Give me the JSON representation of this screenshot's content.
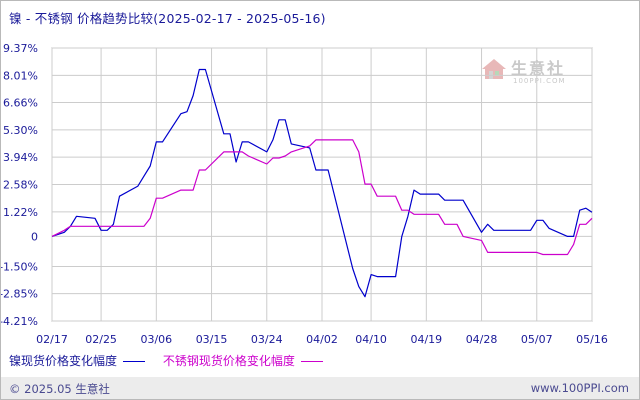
{
  "title": "镍 - 不锈钢 价格趋势比较(2025-02-17 - 2025-05-16)",
  "footer": {
    "left": "© 2025.05 生意社",
    "right": "www.100PPI.com"
  },
  "watermark": {
    "name": "生意社",
    "url": "100PPI.COM",
    "icon": "house-logo-icon"
  },
  "colors": {
    "nickel": "#0000cc",
    "stainless": "#cc00cc",
    "grid": "#cccccc",
    "axis_text": "#1a1a99"
  },
  "chart_data": {
    "type": "line",
    "title": "镍 - 不锈钢 价格趋势比较(2025-02-17 - 2025-05-16)",
    "xlabel": "",
    "ylabel": "",
    "x_range": [
      "2025-02-17",
      "2025-05-16"
    ],
    "x_ticks": [
      "02/17",
      "02/25",
      "03/06",
      "03/15",
      "03/24",
      "04/02",
      "04/10",
      "04/19",
      "04/28",
      "05/07",
      "05/16"
    ],
    "y_ticks": [
      {
        "value": 9.37,
        "label": "9.37%"
      },
      {
        "value": 8.01,
        "label": "8.01%"
      },
      {
        "value": 6.66,
        "label": "6.66%"
      },
      {
        "value": 5.3,
        "label": "5.30%"
      },
      {
        "value": 3.94,
        "label": "3.94%"
      },
      {
        "value": 2.58,
        "label": "2.58%"
      },
      {
        "value": 1.22,
        "label": "1.22%"
      },
      {
        "value": 0,
        "label": "0"
      },
      {
        "value": -1.5,
        "label": "-1.50%"
      },
      {
        "value": -2.85,
        "label": "-2.85%"
      },
      {
        "value": -4.21,
        "label": "-4.21%"
      }
    ],
    "ylim": [
      -4.21,
      9.37
    ],
    "grid": true,
    "legend_position": "bottom",
    "series": [
      {
        "name": "镍现货价格变化幅度",
        "color": "#0000cc",
        "points": [
          [
            "02/17",
            0.0
          ],
          [
            "02/19",
            0.2
          ],
          [
            "02/20",
            0.5
          ],
          [
            "02/21",
            1.0
          ],
          [
            "02/24",
            0.9
          ],
          [
            "02/25",
            0.3
          ],
          [
            "02/26",
            0.3
          ],
          [
            "02/27",
            0.6
          ],
          [
            "02/28",
            2.0
          ],
          [
            "03/03",
            2.5
          ],
          [
            "03/04",
            3.0
          ],
          [
            "03/05",
            3.5
          ],
          [
            "03/06",
            4.7
          ],
          [
            "03/07",
            4.7
          ],
          [
            "03/10",
            6.1
          ],
          [
            "03/11",
            6.2
          ],
          [
            "03/12",
            7.0
          ],
          [
            "03/13",
            8.3
          ],
          [
            "03/14",
            8.3
          ],
          [
            "03/17",
            5.1
          ],
          [
            "03/18",
            5.1
          ],
          [
            "03/19",
            3.7
          ],
          [
            "03/20",
            4.7
          ],
          [
            "03/21",
            4.7
          ],
          [
            "03/24",
            4.2
          ],
          [
            "03/25",
            4.8
          ],
          [
            "03/26",
            5.8
          ],
          [
            "03/27",
            5.8
          ],
          [
            "03/28",
            4.6
          ],
          [
            "03/31",
            4.4
          ],
          [
            "04/01",
            3.3
          ],
          [
            "04/02",
            3.3
          ],
          [
            "04/03",
            3.3
          ],
          [
            "04/07",
            -1.6
          ],
          [
            "04/08",
            -2.5
          ],
          [
            "04/09",
            -3.0
          ],
          [
            "04/10",
            -1.9
          ],
          [
            "04/11",
            -2.0
          ],
          [
            "04/14",
            -2.0
          ],
          [
            "04/15",
            0.0
          ],
          [
            "04/16",
            1.0
          ],
          [
            "04/17",
            2.3
          ],
          [
            "04/18",
            2.1
          ],
          [
            "04/21",
            2.1
          ],
          [
            "04/22",
            1.8
          ],
          [
            "04/23",
            1.8
          ],
          [
            "04/24",
            1.8
          ],
          [
            "04/25",
            1.8
          ],
          [
            "04/28",
            0.2
          ],
          [
            "04/29",
            0.6
          ],
          [
            "04/30",
            0.3
          ],
          [
            "05/06",
            0.3
          ],
          [
            "05/07",
            0.8
          ],
          [
            "05/08",
            0.8
          ],
          [
            "05/09",
            0.4
          ],
          [
            "05/12",
            0.0
          ],
          [
            "05/13",
            0.0
          ],
          [
            "05/14",
            1.3
          ],
          [
            "05/15",
            1.4
          ],
          [
            "05/16",
            1.2
          ]
        ]
      },
      {
        "name": "不锈钢现货价格变化幅度",
        "color": "#cc00cc",
        "points": [
          [
            "02/17",
            0.0
          ],
          [
            "02/19",
            0.3
          ],
          [
            "02/20",
            0.5
          ],
          [
            "02/21",
            0.5
          ],
          [
            "02/24",
            0.5
          ],
          [
            "02/25",
            0.5
          ],
          [
            "02/26",
            0.5
          ],
          [
            "02/27",
            0.5
          ],
          [
            "02/28",
            0.5
          ],
          [
            "03/03",
            0.5
          ],
          [
            "03/04",
            0.5
          ],
          [
            "03/05",
            0.9
          ],
          [
            "03/06",
            1.9
          ],
          [
            "03/07",
            1.9
          ],
          [
            "03/10",
            2.3
          ],
          [
            "03/11",
            2.3
          ],
          [
            "03/12",
            2.3
          ],
          [
            "03/13",
            3.3
          ],
          [
            "03/14",
            3.3
          ],
          [
            "03/17",
            4.2
          ],
          [
            "03/18",
            4.2
          ],
          [
            "03/19",
            4.2
          ],
          [
            "03/20",
            4.2
          ],
          [
            "03/21",
            4.0
          ],
          [
            "03/24",
            3.6
          ],
          [
            "03/25",
            3.9
          ],
          [
            "03/26",
            3.9
          ],
          [
            "03/27",
            4.0
          ],
          [
            "03/28",
            4.2
          ],
          [
            "03/31",
            4.5
          ],
          [
            "04/01",
            4.8
          ],
          [
            "04/02",
            4.8
          ],
          [
            "04/03",
            4.8
          ],
          [
            "04/07",
            4.8
          ],
          [
            "04/08",
            4.2
          ],
          [
            "04/09",
            2.6
          ],
          [
            "04/10",
            2.6
          ],
          [
            "04/11",
            2.0
          ],
          [
            "04/14",
            2.0
          ],
          [
            "04/15",
            1.3
          ],
          [
            "04/16",
            1.3
          ],
          [
            "04/17",
            1.1
          ],
          [
            "04/18",
            1.1
          ],
          [
            "04/21",
            1.1
          ],
          [
            "04/22",
            0.6
          ],
          [
            "04/23",
            0.6
          ],
          [
            "04/24",
            0.6
          ],
          [
            "04/25",
            0.0
          ],
          [
            "04/28",
            -0.2
          ],
          [
            "04/29",
            -0.8
          ],
          [
            "04/30",
            -0.8
          ],
          [
            "05/06",
            -0.8
          ],
          [
            "05/07",
            -0.8
          ],
          [
            "05/08",
            -0.9
          ],
          [
            "05/09",
            -0.9
          ],
          [
            "05/12",
            -0.9
          ],
          [
            "05/13",
            -0.4
          ],
          [
            "05/14",
            0.6
          ],
          [
            "05/15",
            0.6
          ],
          [
            "05/16",
            0.9
          ]
        ]
      }
    ]
  }
}
